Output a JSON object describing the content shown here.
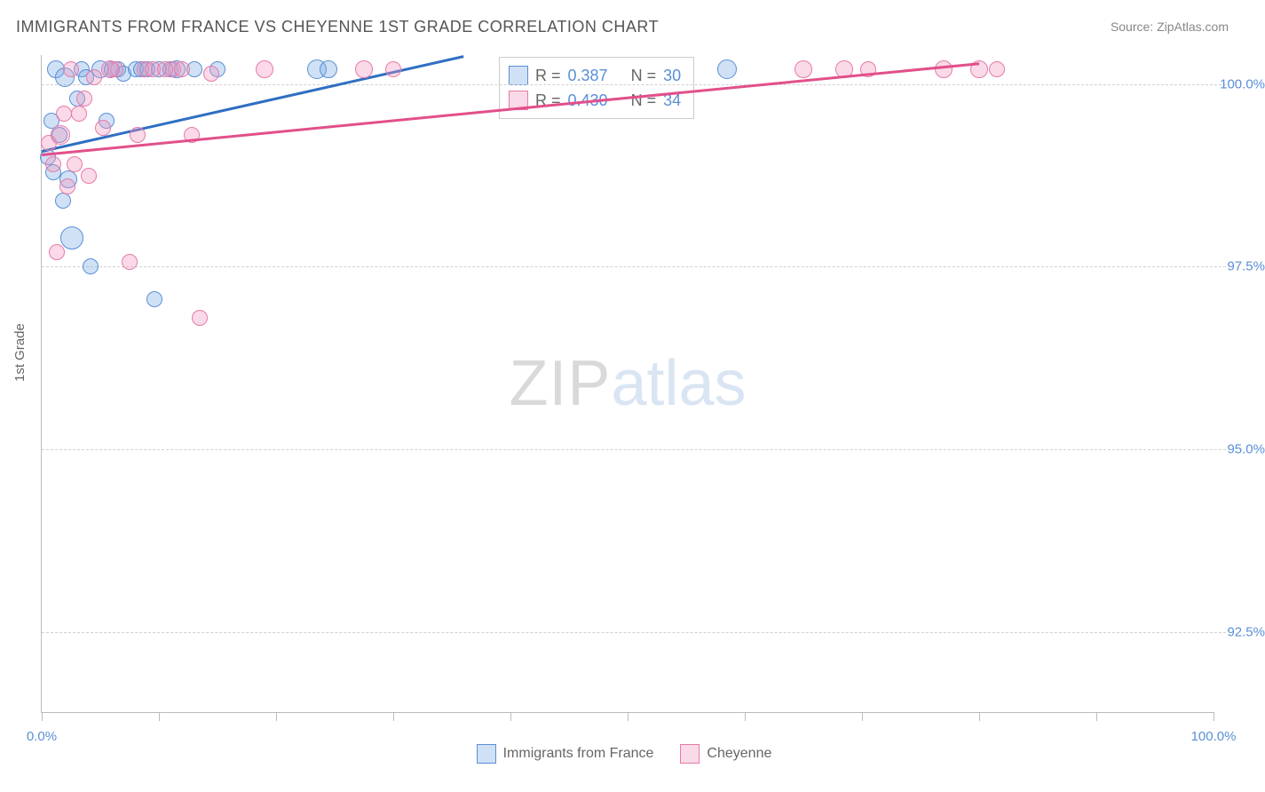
{
  "title": "IMMIGRANTS FROM FRANCE VS CHEYENNE 1ST GRADE CORRELATION CHART",
  "source": "Source: ZipAtlas.com",
  "ylabel": "1st Grade",
  "watermark": {
    "part1": "ZIP",
    "part2": "atlas"
  },
  "chart": {
    "type": "scatter",
    "background_color": "#ffffff",
    "grid_color": "#d0d0d0",
    "axis_color": "#bbbbbb",
    "tick_label_color": "#5a8fd6",
    "label_color": "#666666",
    "title_fontsize": 18,
    "tick_fontsize": 15,
    "xlim": [
      0,
      100
    ],
    "ylim": [
      91.4,
      100.4
    ],
    "yticks": [
      {
        "value": 100.0,
        "label": "100.0%"
      },
      {
        "value": 97.5,
        "label": "97.5%"
      },
      {
        "value": 95.0,
        "label": "95.0%"
      },
      {
        "value": 92.5,
        "label": "92.5%"
      }
    ],
    "xticks_major": [
      0,
      10,
      20,
      30,
      40,
      50,
      60,
      70,
      80,
      90,
      100
    ],
    "xticks_labeled": [
      {
        "value": 0,
        "label": "0.0%"
      },
      {
        "value": 100,
        "label": "100.0%"
      }
    ],
    "series": [
      {
        "name": "Immigrants from France",
        "fill": "rgba(120,170,230,0.35)",
        "stroke": "#5a8fd6",
        "marker_stroke_width": 1.2,
        "line_color": "#2f6fc2",
        "line_width": 2.5,
        "R": "0.387",
        "N": "30",
        "trend": {
          "x1": 0,
          "y1": 99.1,
          "x2": 36,
          "y2": 100.4
        },
        "points": [
          {
            "x": 0.5,
            "y": 99.0,
            "r": 8
          },
          {
            "x": 0.8,
            "y": 99.5,
            "r": 8
          },
          {
            "x": 1.0,
            "y": 98.8,
            "r": 8
          },
          {
            "x": 1.2,
            "y": 100.2,
            "r": 9
          },
          {
            "x": 1.5,
            "y": 99.3,
            "r": 8
          },
          {
            "x": 1.8,
            "y": 98.4,
            "r": 8
          },
          {
            "x": 2.0,
            "y": 100.1,
            "r": 10
          },
          {
            "x": 2.3,
            "y": 98.7,
            "r": 9
          },
          {
            "x": 2.6,
            "y": 97.9,
            "r": 12
          },
          {
            "x": 3.0,
            "y": 99.8,
            "r": 8
          },
          {
            "x": 3.4,
            "y": 100.2,
            "r": 8
          },
          {
            "x": 3.8,
            "y": 100.1,
            "r": 8
          },
          {
            "x": 4.2,
            "y": 97.5,
            "r": 8
          },
          {
            "x": 5.0,
            "y": 100.2,
            "r": 9
          },
          {
            "x": 5.5,
            "y": 99.5,
            "r": 8
          },
          {
            "x": 6.0,
            "y": 100.2,
            "r": 8
          },
          {
            "x": 6.5,
            "y": 100.2,
            "r": 8
          },
          {
            "x": 7.0,
            "y": 100.15,
            "r": 8
          },
          {
            "x": 8.0,
            "y": 100.2,
            "r": 8
          },
          {
            "x": 8.5,
            "y": 100.2,
            "r": 8
          },
          {
            "x": 9.0,
            "y": 100.2,
            "r": 8
          },
          {
            "x": 9.6,
            "y": 97.06,
            "r": 8
          },
          {
            "x": 10.0,
            "y": 100.2,
            "r": 8
          },
          {
            "x": 11.0,
            "y": 100.2,
            "r": 8
          },
          {
            "x": 11.5,
            "y": 100.2,
            "r": 9
          },
          {
            "x": 13.0,
            "y": 100.2,
            "r": 8
          },
          {
            "x": 15.0,
            "y": 100.2,
            "r": 8
          },
          {
            "x": 23.5,
            "y": 100.2,
            "r": 10
          },
          {
            "x": 24.5,
            "y": 100.2,
            "r": 9
          },
          {
            "x": 58.5,
            "y": 100.2,
            "r": 10
          }
        ]
      },
      {
        "name": "Cheyenne",
        "fill": "rgba(240,150,190,0.35)",
        "stroke": "#e77aa8",
        "marker_stroke_width": 1.2,
        "line_color": "#e24f8a",
        "line_width": 2.5,
        "R": "0.430",
        "N": "34",
        "trend": {
          "x1": 0,
          "y1": 99.05,
          "x2": 80,
          "y2": 100.3
        },
        "points": [
          {
            "x": 0.6,
            "y": 99.2,
            "r": 8
          },
          {
            "x": 1.0,
            "y": 98.9,
            "r": 8
          },
          {
            "x": 1.3,
            "y": 97.7,
            "r": 8
          },
          {
            "x": 1.6,
            "y": 99.3,
            "r": 10
          },
          {
            "x": 1.9,
            "y": 99.6,
            "r": 8
          },
          {
            "x": 2.2,
            "y": 98.6,
            "r": 8
          },
          {
            "x": 2.5,
            "y": 100.2,
            "r": 8
          },
          {
            "x": 2.8,
            "y": 98.9,
            "r": 8
          },
          {
            "x": 3.2,
            "y": 99.6,
            "r": 8
          },
          {
            "x": 3.6,
            "y": 99.8,
            "r": 8
          },
          {
            "x": 4.0,
            "y": 98.75,
            "r": 8
          },
          {
            "x": 4.5,
            "y": 100.1,
            "r": 8
          },
          {
            "x": 5.2,
            "y": 99.4,
            "r": 8
          },
          {
            "x": 5.8,
            "y": 100.2,
            "r": 9
          },
          {
            "x": 6.3,
            "y": 100.2,
            "r": 8
          },
          {
            "x": 7.5,
            "y": 97.57,
            "r": 8
          },
          {
            "x": 8.2,
            "y": 99.3,
            "r": 8
          },
          {
            "x": 8.8,
            "y": 100.2,
            "r": 8
          },
          {
            "x": 9.5,
            "y": 100.2,
            "r": 8
          },
          {
            "x": 10.5,
            "y": 100.2,
            "r": 8
          },
          {
            "x": 11.2,
            "y": 100.2,
            "r": 8
          },
          {
            "x": 12.0,
            "y": 100.2,
            "r": 8
          },
          {
            "x": 12.8,
            "y": 99.3,
            "r": 8
          },
          {
            "x": 13.5,
            "y": 96.8,
            "r": 8
          },
          {
            "x": 14.5,
            "y": 100.15,
            "r": 8
          },
          {
            "x": 19.0,
            "y": 100.2,
            "r": 9
          },
          {
            "x": 27.5,
            "y": 100.2,
            "r": 9
          },
          {
            "x": 30.0,
            "y": 100.2,
            "r": 8
          },
          {
            "x": 65.0,
            "y": 100.2,
            "r": 9
          },
          {
            "x": 68.5,
            "y": 100.2,
            "r": 9
          },
          {
            "x": 70.5,
            "y": 100.2,
            "r": 8
          },
          {
            "x": 77.0,
            "y": 100.2,
            "r": 9
          },
          {
            "x": 80.0,
            "y": 100.2,
            "r": 9
          },
          {
            "x": 81.5,
            "y": 100.2,
            "r": 8
          }
        ]
      }
    ]
  },
  "legend_box": {
    "rows": [
      {
        "swatch_fill": "rgba(120,170,230,0.35)",
        "swatch_stroke": "#5a8fd6",
        "R_label": "R =",
        "R": "0.387",
        "N_label": "N =",
        "N": "30"
      },
      {
        "swatch_fill": "rgba(240,150,190,0.35)",
        "swatch_stroke": "#e77aa8",
        "R_label": "R =",
        "R": "0.430",
        "N_label": "N =",
        "N": "34"
      }
    ]
  },
  "bottom_legend": [
    {
      "swatch_fill": "rgba(120,170,230,0.35)",
      "swatch_stroke": "#5a8fd6",
      "label": "Immigrants from France"
    },
    {
      "swatch_fill": "rgba(240,150,190,0.35)",
      "swatch_stroke": "#e77aa8",
      "label": "Cheyenne"
    }
  ]
}
